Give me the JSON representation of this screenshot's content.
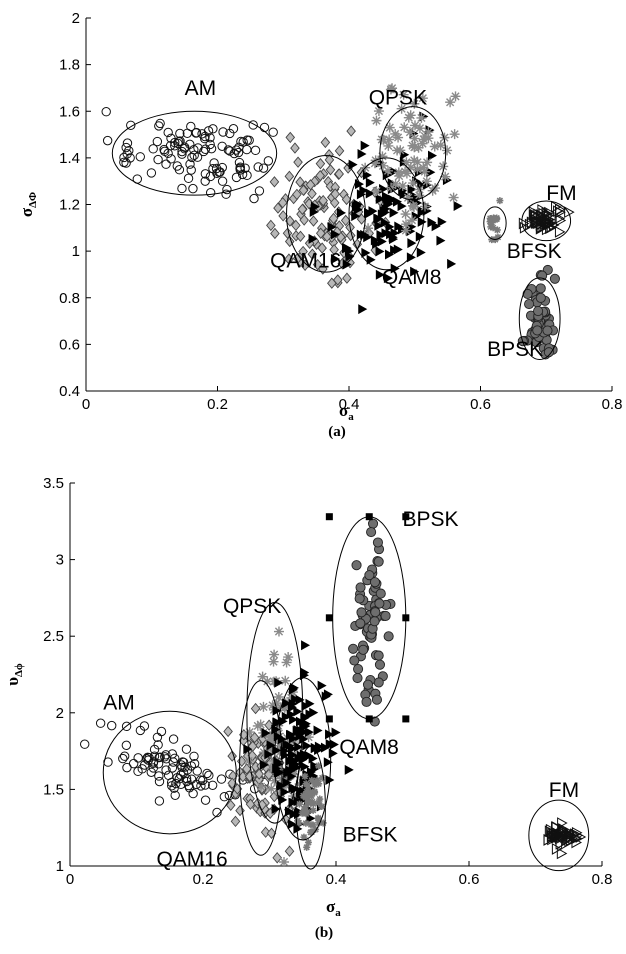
{
  "chart_data": [
    {
      "type": "scatter",
      "sublabel": "(a)",
      "xlabel": {
        "base": "σ",
        "sub": "a"
      },
      "ylabel": {
        "base": "σ",
        "sub": "ΔΦ"
      },
      "xlim": [
        0,
        0.8
      ],
      "ylim": [
        0.4,
        2
      ],
      "xticks": [
        "0",
        "0.2",
        "0.4",
        "0.6",
        "0.8"
      ],
      "yticks": [
        "0.4",
        "0.6",
        "0.8",
        "1",
        "1.2",
        "1.4",
        "1.6",
        "1.8",
        "2"
      ],
      "grid": false,
      "series": [
        {
          "name": "AM",
          "marker": "circle-open",
          "center": [
            0.165,
            1.42
          ],
          "spread": [
            0.06,
            0.07
          ],
          "tilt": -0.3,
          "n": 110
        },
        {
          "name": "QAM16",
          "marker": "diamond-gray",
          "center": [
            0.365,
            1.15
          ],
          "spread": [
            0.04,
            0.13
          ],
          "tilt": 0.0,
          "n": 120
        },
        {
          "name": "QAM8",
          "marker": "triangle-right-filled",
          "center": [
            0.46,
            1.15
          ],
          "spread": [
            0.045,
            0.14
          ],
          "tilt": 0.3,
          "n": 120
        },
        {
          "name": "QPSK",
          "marker": "asterisk-gray",
          "center": [
            0.495,
            1.42
          ],
          "spread": [
            0.03,
            0.14
          ],
          "tilt": 0.3,
          "n": 80
        },
        {
          "name": "BFSK",
          "marker": "star-small-gray",
          "center": [
            0.622,
            1.12
          ],
          "spread": [
            0.006,
            0.04
          ],
          "tilt": 0.0,
          "n": 14
        },
        {
          "name": "FM",
          "marker": "triangle-right-open",
          "center": [
            0.695,
            1.13
          ],
          "spread": [
            0.013,
            0.025
          ],
          "tilt": 0.0,
          "n": 60
        },
        {
          "name": "BPSK",
          "marker": "circle-filled-gray",
          "center": [
            0.69,
            0.72
          ],
          "spread": [
            0.01,
            0.08
          ],
          "tilt": 0.0,
          "n": 60
        }
      ],
      "labels": [
        {
          "text": "AM",
          "x": 0.15,
          "y": 1.67
        },
        {
          "text": "QPSK",
          "x": 0.43,
          "y": 1.63
        },
        {
          "text": "FM",
          "x": 0.7,
          "y": 1.22
        },
        {
          "text": "BFSK",
          "x": 0.64,
          "y": 0.97
        },
        {
          "text": "QAM16",
          "x": 0.28,
          "y": 0.93
        },
        {
          "text": "QAM8",
          "x": 0.45,
          "y": 0.86
        },
        {
          "text": "BPSK",
          "x": 0.61,
          "y": 0.55
        }
      ],
      "ellipses": [
        {
          "center": [
            0.165,
            1.42
          ],
          "radii": [
            0.125,
            0.18
          ]
        },
        {
          "center": [
            0.365,
            1.16
          ],
          "radii": [
            0.06,
            0.25
          ]
        },
        {
          "center": [
            0.457,
            1.16
          ],
          "radii": [
            0.057,
            0.24
          ]
        },
        {
          "center": [
            0.497,
            1.42
          ],
          "radii": [
            0.05,
            0.2
          ]
        },
        {
          "center": [
            0.622,
            1.12
          ],
          "radii": [
            0.017,
            0.07
          ]
        },
        {
          "center": [
            0.7,
            1.13
          ],
          "radii": [
            0.037,
            0.085
          ]
        },
        {
          "center": [
            0.69,
            0.71
          ],
          "radii": [
            0.031,
            0.175
          ]
        }
      ]
    },
    {
      "type": "scatter",
      "sublabel": "(b)",
      "xlabel": {
        "base": "σ",
        "sub": "a"
      },
      "ylabel": {
        "base": "υ",
        "sub": "Δϕ"
      },
      "xlim": [
        0,
        0.8
      ],
      "ylim": [
        1,
        3.5
      ],
      "xticks": [
        "0",
        "0.2",
        "0.4",
        "0.6",
        "0.8"
      ],
      "yticks": [
        "1",
        "1.5",
        "2",
        "2.5",
        "3",
        "3.5"
      ],
      "grid": false,
      "series": [
        {
          "name": "AM",
          "marker": "circle-open",
          "center": [
            0.16,
            1.62
          ],
          "spread": [
            0.045,
            0.1
          ],
          "tilt": -0.9,
          "n": 90
        },
        {
          "name": "QAM16",
          "marker": "diamond-gray",
          "center": [
            0.29,
            1.6
          ],
          "spread": [
            0.022,
            0.18
          ],
          "tilt": 0.0,
          "n": 110
        },
        {
          "name": "QPSK",
          "marker": "asterisk-gray",
          "center": [
            0.315,
            1.85
          ],
          "spread": [
            0.02,
            0.3
          ],
          "tilt": 0.0,
          "n": 60
        },
        {
          "name": "QAM8",
          "marker": "triangle-right-filled",
          "center": [
            0.345,
            1.75
          ],
          "spread": [
            0.025,
            0.24
          ],
          "tilt": 0.0,
          "n": 140
        },
        {
          "name": "BFSK",
          "marker": "star-small-gray",
          "center": [
            0.362,
            1.35
          ],
          "spread": [
            0.009,
            0.13
          ],
          "tilt": 0.0,
          "n": 50
        },
        {
          "name": "BPSK",
          "marker": "circle-filled-gray",
          "center": [
            0.45,
            2.55
          ],
          "spread": [
            0.013,
            0.3
          ],
          "tilt": 0.0,
          "n": 70
        },
        {
          "name": "FM",
          "marker": "triangle-right-open",
          "center": [
            0.74,
            1.2
          ],
          "spread": [
            0.014,
            0.03
          ],
          "tilt": 0.0,
          "n": 60
        }
      ],
      "labels": [
        {
          "text": "BPSK",
          "x": 0.5,
          "y": 3.22
        },
        {
          "text": "QPSK",
          "x": 0.23,
          "y": 2.65
        },
        {
          "text": "AM",
          "x": 0.05,
          "y": 2.02
        },
        {
          "text": "QAM8",
          "x": 0.405,
          "y": 1.73
        },
        {
          "text": "FM",
          "x": 0.72,
          "y": 1.45
        },
        {
          "text": "BFSK",
          "x": 0.41,
          "y": 1.16
        },
        {
          "text": "QAM16",
          "x": 0.13,
          "y": 1.0
        }
      ],
      "ellipses": [
        {
          "center": [
            0.15,
            1.61
          ],
          "radii": [
            0.1,
            0.4
          ]
        },
        {
          "center": [
            0.287,
            1.64
          ],
          "radii": [
            0.032,
            0.57
          ]
        },
        {
          "center": [
            0.308,
            2.0
          ],
          "radii": [
            0.042,
            0.72
          ]
        },
        {
          "center": [
            0.35,
            1.7
          ],
          "radii": [
            0.042,
            0.53
          ]
        },
        {
          "center": [
            0.362,
            1.38
          ],
          "radii": [
            0.022,
            0.4
          ]
        },
        {
          "center": [
            0.45,
            2.62
          ],
          "radii": [
            0.055,
            0.66
          ]
        },
        {
          "center": [
            0.735,
            1.2
          ],
          "radii": [
            0.045,
            0.23
          ]
        }
      ],
      "bounding_markers": [
        [
          0.39,
          3.28
        ],
        [
          0.45,
          3.28
        ],
        [
          0.505,
          3.28
        ],
        [
          0.39,
          2.62
        ],
        [
          0.505,
          2.62
        ],
        [
          0.39,
          1.96
        ],
        [
          0.45,
          1.96
        ],
        [
          0.505,
          1.96
        ]
      ]
    }
  ]
}
